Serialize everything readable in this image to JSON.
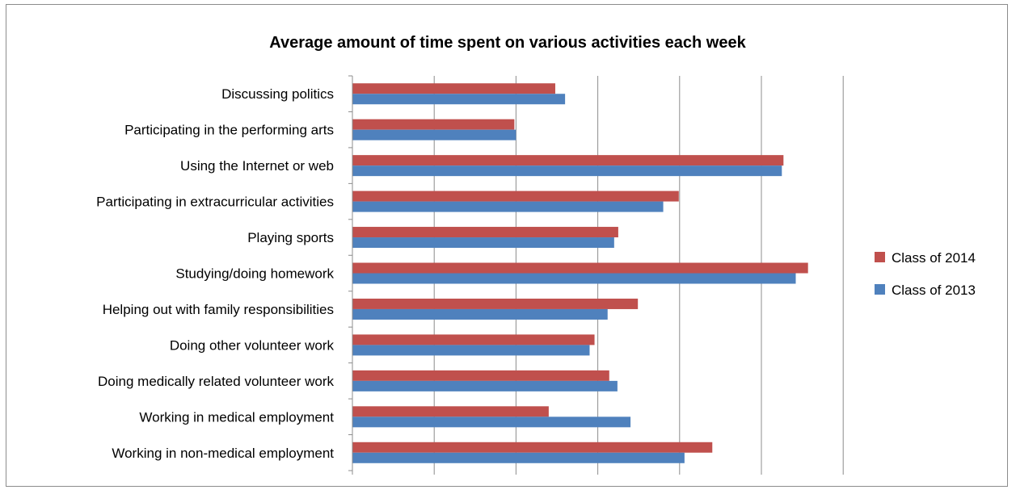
{
  "chart_data": {
    "type": "bar",
    "orientation": "horizontal",
    "title": "Average amount of time spent on various activities each week",
    "xlabel": "",
    "ylabel": "",
    "categories": [
      "Discussing politics",
      "Participating in the performing arts",
      "Using the Internet or web",
      "Participating in extracurricular activities",
      "Playing sports",
      "Studying/doing homework",
      "Helping out with family responsibilities",
      "Doing other volunteer work",
      "Doing medically related volunteer work",
      "Working in medical employment",
      "Working in non-medical employment"
    ],
    "series": [
      {
        "name": "Class of 2014",
        "color": "#c0504d",
        "values": [
          2.48,
          1.98,
          5.27,
          3.99,
          3.25,
          5.57,
          3.49,
          2.96,
          3.14,
          2.4,
          4.4
        ]
      },
      {
        "name": "Class of 2013",
        "color": "#4f81bd",
        "values": [
          2.6,
          2.0,
          5.25,
          3.8,
          3.2,
          5.42,
          3.12,
          2.9,
          3.24,
          3.4,
          4.06
        ]
      }
    ],
    "xlim": [
      0,
      6
    ],
    "x_tick_labels_shown": false,
    "grid": true,
    "legend_position": "right"
  }
}
